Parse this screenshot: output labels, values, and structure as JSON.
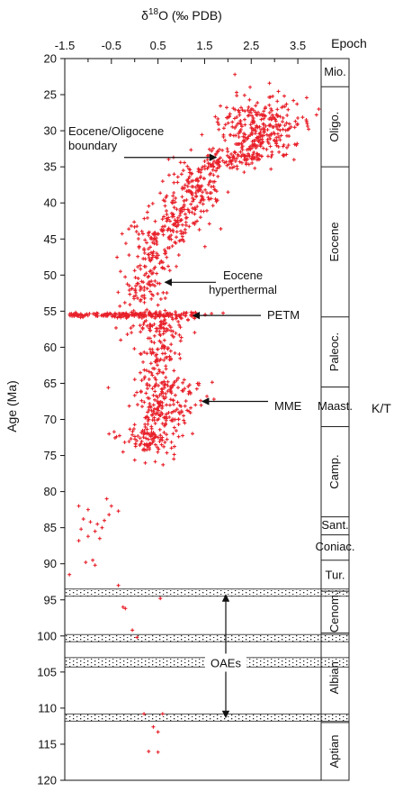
{
  "chart_data": {
    "type": "scatter",
    "title": "",
    "xlabel": "δ18O (‰ PDB)",
    "xlabel_parts": {
      "pre": "δ",
      "sup": "18",
      "post": "O (‰ PDB)"
    },
    "ylabel": "Age (Ma)",
    "xlim": [
      -1.5,
      4.0
    ],
    "ylim": [
      120,
      20
    ],
    "xticks": [
      -1.5,
      -0.5,
      0.5,
      1.5,
      2.5,
      3.5
    ],
    "xtick_labels": [
      "-1.5",
      "-0.5",
      "0.5",
      "1.5",
      "2.5",
      "3.5"
    ],
    "yticks": [
      20,
      25,
      30,
      35,
      40,
      45,
      50,
      55,
      60,
      65,
      70,
      75,
      80,
      85,
      90,
      95,
      100,
      105,
      110,
      115,
      120
    ],
    "ytick_labels": [
      "20",
      "25",
      "30",
      "35",
      "40",
      "45",
      "50",
      "55",
      "60",
      "65",
      "70",
      "75",
      "80",
      "85",
      "90",
      "95",
      "100",
      "105",
      "110",
      "115",
      "120"
    ],
    "marker_color": "#e8202a",
    "series": [
      {
        "clusters": [
          {
            "x": 2.6,
            "y": 30,
            "sx": 0.4,
            "sy": 2.3,
            "n": 260
          },
          {
            "x": 3.2,
            "y": 28.5,
            "sx": 0.3,
            "sy": 1.5,
            "n": 40
          },
          {
            "x": 2.3,
            "y": 33.5,
            "sx": 0.35,
            "sy": 0.5,
            "n": 60
          },
          {
            "x": 1.8,
            "y": 34.5,
            "sx": 0.25,
            "sy": 0.5,
            "n": 40
          },
          {
            "x": 1.4,
            "y": 37.5,
            "sx": 0.25,
            "sy": 1.5,
            "n": 110
          },
          {
            "x": 0.9,
            "y": 42,
            "sx": 0.3,
            "sy": 2,
            "n": 130
          },
          {
            "x": 0.35,
            "y": 47,
            "sx": 0.25,
            "sy": 2.3,
            "n": 100
          },
          {
            "x": 0.1,
            "y": 52,
            "sx": 0.25,
            "sy": 1.2,
            "n": 60
          },
          {
            "x": 0.3,
            "y": 55.5,
            "sx": 0.7,
            "sy": 0.25,
            "n": 120
          },
          {
            "x": 0.5,
            "y": 57,
            "sx": 0.3,
            "sy": 0.8,
            "n": 70
          },
          {
            "x": 0.55,
            "y": 61,
            "sx": 0.25,
            "sy": 1.6,
            "n": 80
          },
          {
            "x": 0.75,
            "y": 65.5,
            "sx": 0.35,
            "sy": 0.6,
            "n": 60
          },
          {
            "x": 0.6,
            "y": 68.5,
            "sx": 0.3,
            "sy": 1.5,
            "n": 120
          },
          {
            "x": 0.35,
            "y": 72.5,
            "sx": 0.3,
            "sy": 1.3,
            "n": 110
          }
        ],
        "points": [
          [
            2.15,
            22.2
          ],
          [
            3.95,
            27.0
          ],
          [
            3.9,
            27.8
          ],
          [
            3.7,
            29.0
          ],
          [
            3.3,
            32.0
          ],
          [
            1.65,
            32.8
          ],
          [
            0.6,
            37.0
          ],
          [
            0.3,
            44.5
          ],
          [
            -0.3,
            59.0
          ],
          [
            1.55,
            66.8
          ],
          [
            1.7,
            67.2
          ],
          [
            -0.55,
            72.0
          ],
          [
            -0.25,
            74.5
          ],
          [
            -1.2,
            82.0
          ],
          [
            -1.0,
            82.5
          ],
          [
            -0.6,
            81.0
          ],
          [
            -0.5,
            82.0
          ],
          [
            -0.35,
            82.7
          ],
          [
            -0.55,
            83.2
          ],
          [
            -1.1,
            83.8
          ],
          [
            -0.95,
            84.2
          ],
          [
            -0.8,
            84.5
          ],
          [
            -0.65,
            84.0
          ],
          [
            -0.7,
            85.0
          ],
          [
            -1.15,
            85.2
          ],
          [
            -0.85,
            85.5
          ],
          [
            -1.0,
            86.2
          ],
          [
            -1.2,
            86.8
          ],
          [
            -0.75,
            86.5
          ],
          [
            -0.9,
            89.5
          ],
          [
            -1.05,
            89.8
          ],
          [
            -0.85,
            90.2
          ],
          [
            -1.4,
            91.5
          ],
          [
            -0.35,
            93.0
          ],
          [
            0.55,
            94.8
          ],
          [
            -0.25,
            96.0
          ],
          [
            -0.2,
            96.2
          ],
          [
            -0.05,
            99.2
          ],
          [
            0.05,
            100.2
          ],
          [
            0.2,
            110.8
          ],
          [
            0.6,
            110.8
          ],
          [
            0.4,
            112.6
          ],
          [
            0.5,
            113.3
          ],
          [
            0.3,
            116.0
          ],
          [
            0.5,
            116.1
          ]
        ]
      }
    ],
    "epochs": [
      {
        "name": "Mio.",
        "top": 20,
        "bottom": 23.9
      },
      {
        "name": "Oligo.",
        "top": 23.9,
        "bottom": 35
      },
      {
        "name": "Eocene",
        "top": 35,
        "bottom": 55.8
      },
      {
        "name": "Paleoc.",
        "top": 55.8,
        "bottom": 65.5
      },
      {
        "name": "Maast.",
        "top": 65.5,
        "bottom": 71
      },
      {
        "name": "Camp.",
        "top": 71,
        "bottom": 83.5
      },
      {
        "name": "Sant.",
        "top": 83.5,
        "bottom": 86
      },
      {
        "name": "Coniac.",
        "top": 86,
        "bottom": 89.5
      },
      {
        "name": "Tur.",
        "top": 89.5,
        "bottom": 93.8
      },
      {
        "name": "Cenom.",
        "top": 93.8,
        "bottom": 99.6
      },
      {
        "name": "Albian",
        "top": 99.6,
        "bottom": 112
      },
      {
        "name": "Aptian",
        "top": 112,
        "bottom": 120
      }
    ],
    "epoch_header": "Epoch",
    "kt_label": "K/T",
    "oae_bands": [
      [
        93.5,
        94.5
      ],
      [
        99.8,
        100.8
      ],
      [
        103,
        104.3
      ],
      [
        110.8,
        111.8
      ]
    ],
    "annotations": [
      {
        "id": "eocene-oligocene",
        "lines": [
          "Eocene/Oligocene",
          "boundary"
        ],
        "target": [
          1.75,
          33.7
        ]
      },
      {
        "id": "eocene-hyperthermal",
        "lines": [
          "Eocene",
          "hyperthermal"
        ],
        "target": [
          0.65,
          51.0
        ]
      },
      {
        "id": "petm",
        "lines": [
          "PETM"
        ],
        "target": [
          1.25,
          55.6
        ]
      },
      {
        "id": "mme",
        "lines": [
          "MME"
        ],
        "target": [
          1.45,
          67.5
        ]
      },
      {
        "id": "oaes",
        "lines": [
          "OAEs"
        ],
        "target_top": 94.3,
        "target_bottom": 111.3,
        "label_y": 103.7
      }
    ]
  }
}
